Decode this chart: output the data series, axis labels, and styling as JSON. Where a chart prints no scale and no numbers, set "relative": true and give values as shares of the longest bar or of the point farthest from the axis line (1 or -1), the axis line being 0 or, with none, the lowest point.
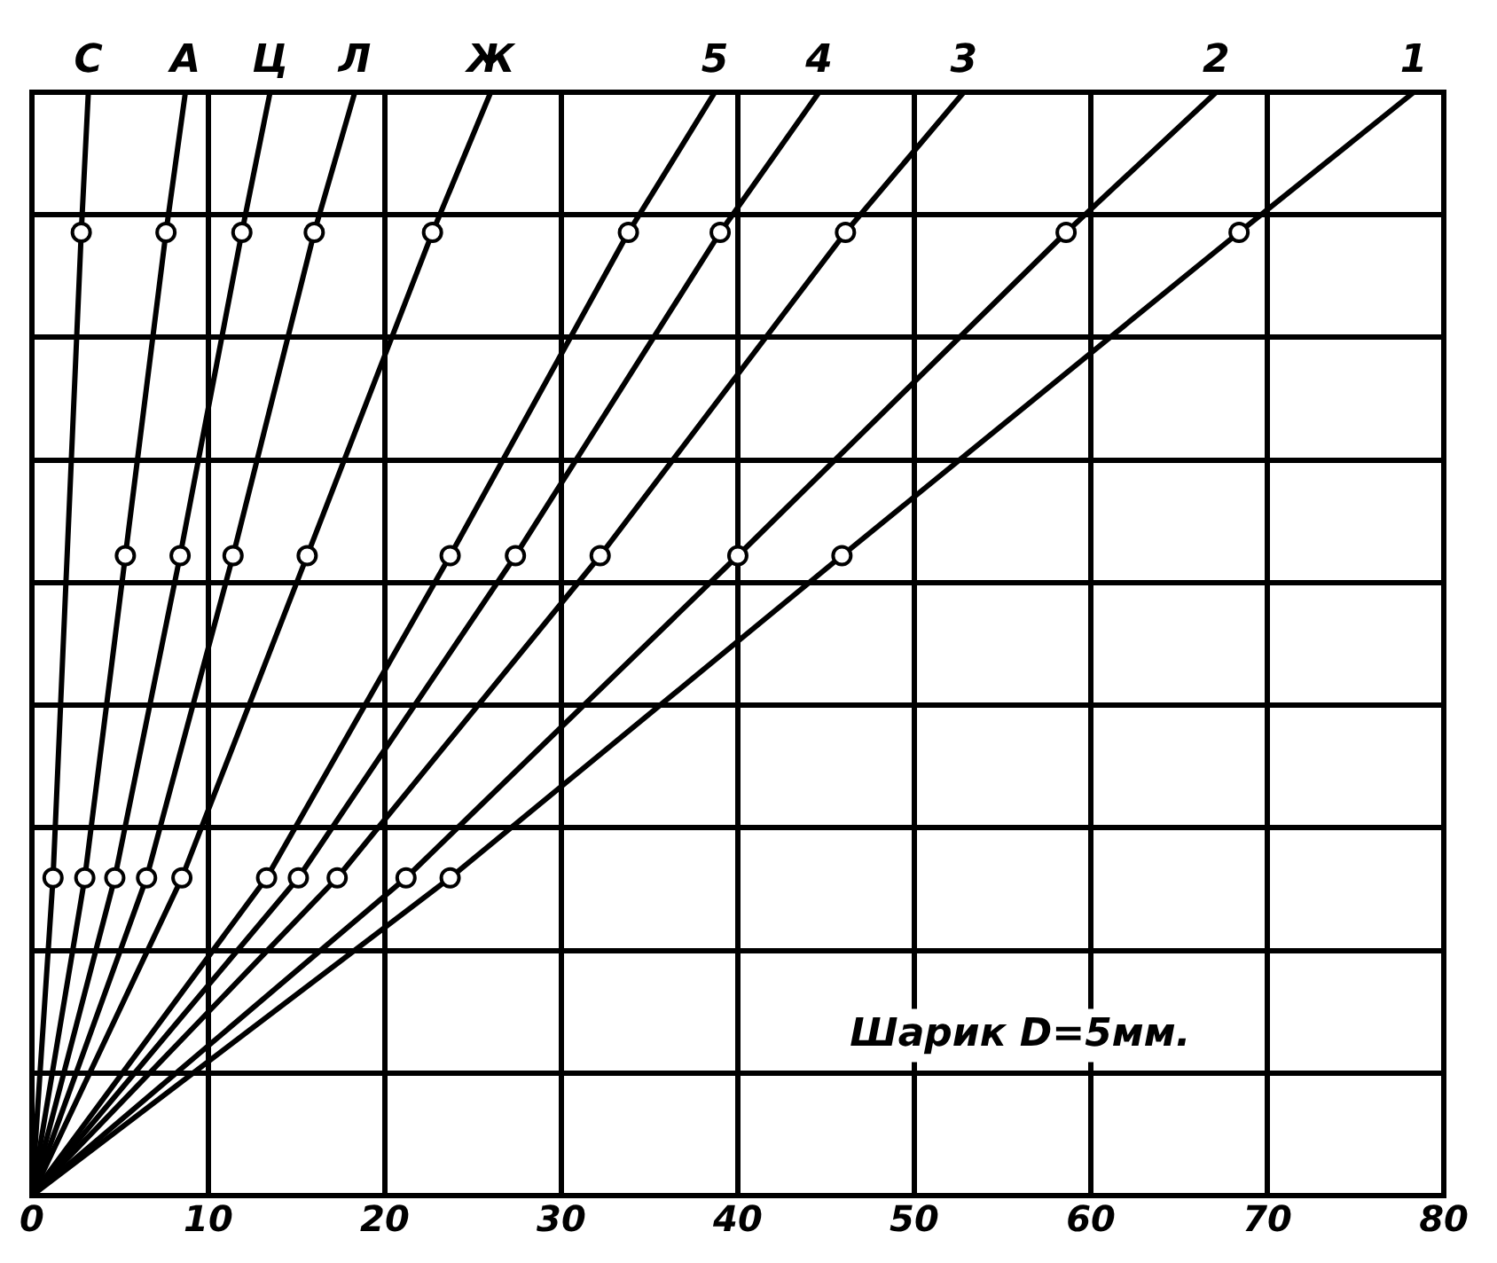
{
  "chart_data": {
    "type": "line",
    "relative": true,
    "xlim": [
      0,
      80
    ],
    "xticks": [
      0,
      10,
      20,
      30,
      40,
      50,
      60,
      70,
      80
    ],
    "grid": true,
    "legend": false,
    "marker": "circle",
    "line_style": "solid",
    "series": [
      {
        "name": "С",
        "color": "#000000",
        "x": [
          0,
          1.2,
          2.8,
          3.2
        ],
        "values": [
          0,
          0.288,
          0.873,
          1
        ]
      },
      {
        "name": "А",
        "color": "#000000",
        "x": [
          0,
          3.0,
          5.3,
          7.6,
          8.7
        ],
        "values": [
          0,
          0.288,
          0.58,
          0.873,
          1
        ]
      },
      {
        "name": "Ц",
        "color": "#000000",
        "x": [
          0,
          4.7,
          8.4,
          11.9,
          13.5
        ],
        "values": [
          0,
          0.288,
          0.58,
          0.873,
          1
        ]
      },
      {
        "name": "Л",
        "color": "#000000",
        "x": [
          0,
          6.5,
          11.4,
          16.0,
          18.3
        ],
        "values": [
          0,
          0.288,
          0.58,
          0.873,
          1
        ]
      },
      {
        "name": "Ж",
        "color": "#000000",
        "x": [
          0,
          8.5,
          15.6,
          22.7,
          26.0
        ],
        "values": [
          0,
          0.288,
          0.58,
          0.873,
          1
        ]
      },
      {
        "name": "5",
        "color": "#000000",
        "x": [
          0,
          13.3,
          23.7,
          33.8,
          38.7
        ],
        "values": [
          0,
          0.288,
          0.58,
          0.873,
          1
        ]
      },
      {
        "name": "4",
        "color": "#000000",
        "x": [
          0,
          15.1,
          27.4,
          39.0,
          44.6
        ],
        "values": [
          0,
          0.288,
          0.58,
          0.873,
          1
        ]
      },
      {
        "name": "3",
        "color": "#000000",
        "x": [
          0,
          17.3,
          32.2,
          46.1,
          52.8
        ],
        "values": [
          0,
          0.288,
          0.58,
          0.873,
          1
        ]
      },
      {
        "name": "2",
        "color": "#000000",
        "x": [
          0,
          21.2,
          40.0,
          58.6,
          67.1
        ],
        "values": [
          0,
          0.288,
          0.58,
          0.873,
          1
        ]
      },
      {
        "name": "1",
        "color": "#000000",
        "x": [
          0,
          23.7,
          45.9,
          68.4,
          78.3
        ],
        "values": [
          0,
          0.288,
          0.58,
          0.873,
          1
        ]
      }
    ],
    "annotations": [
      "Шарик D=5мм."
    ]
  }
}
